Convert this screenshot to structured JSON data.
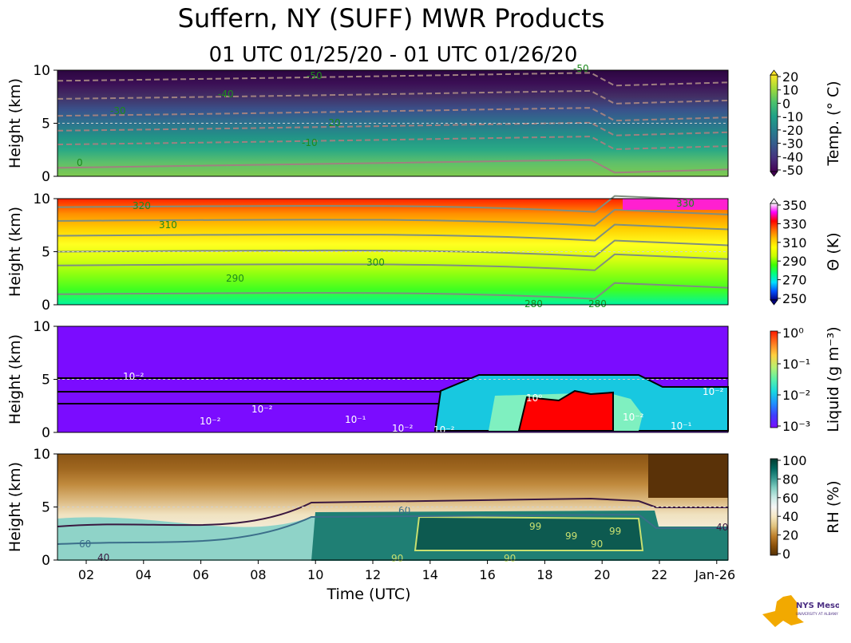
{
  "title": "Suffern, NY (SUFF) MWR Products",
  "subtitle": "01 UTC 01/25/20 - 01 UTC 01/26/20",
  "logo": {
    "text": "NYS Mesonet",
    "subtext": "UNIVERSITY AT ALBANY"
  },
  "chart_data": [
    {
      "type": "heatmap",
      "name": "temperature",
      "ylabel": "Height (km)",
      "ylim": [
        0,
        10
      ],
      "yticks": [
        "0",
        "5",
        "10"
      ],
      "colorbar_label": "Temp. (° C)",
      "colorbar_ticks": [
        "20",
        "10",
        "0",
        "-10",
        "-20",
        "-30",
        "-40",
        "-50"
      ],
      "colorscale": [
        "#440154",
        "#46327e",
        "#365c8d",
        "#277f8e",
        "#1fa187",
        "#4ac16d",
        "#a0da39",
        "#fde725"
      ],
      "contour_labels": [
        "-50",
        "-50",
        "-40",
        "-30",
        "-20",
        "-10",
        "0"
      ],
      "x_ticks_shown": false
    },
    {
      "type": "heatmap",
      "name": "potential-temperature",
      "ylabel": "Height (km)",
      "ylim": [
        0,
        10
      ],
      "yticks": [
        "0",
        "5",
        "10"
      ],
      "colorbar_label": "Θ (K)",
      "colorbar_ticks": [
        "350",
        "330",
        "310",
        "290",
        "270",
        "250"
      ],
      "colorscale": [
        "#000080",
        "#0050ff",
        "#00e0ff",
        "#00ff7f",
        "#40ff00",
        "#c8ff00",
        "#ffff00",
        "#ffc000",
        "#ff6a00",
        "#ff0000",
        "#ff00ff",
        "#ffffff"
      ],
      "contour_labels": [
        "320",
        "310",
        "300",
        "290",
        "280",
        "280",
        "330"
      ],
      "x_ticks_shown": false
    },
    {
      "type": "heatmap",
      "name": "liquid",
      "ylabel": "Height (km)",
      "ylim": [
        0,
        10
      ],
      "yticks": [
        "0",
        "5",
        "10"
      ],
      "colorbar_label": "Liquid (g m⁻³)",
      "colorbar_ticks": [
        "10⁰",
        "10⁻¹",
        "10⁻²",
        "10⁻³"
      ],
      "colorscale": [
        "#7b0cff",
        "#3f3cff",
        "#1e90ff",
        "#18d8e0",
        "#5af0a8",
        "#b8f070",
        "#ffd040",
        "#ff7820",
        "#ff1a00"
      ],
      "contour_labels": [
        "10⁻²",
        "10⁻²",
        "10⁻²",
        "10⁻²",
        "10⁻¹",
        "10⁻²",
        "10⁰",
        "10⁻²",
        "10⁻¹",
        "10⁻²"
      ],
      "x_ticks_shown": false
    },
    {
      "type": "heatmap",
      "name": "relative-humidity",
      "ylabel": "Height (km)",
      "xlabel": "Time (UTC)",
      "ylim": [
        0,
        10
      ],
      "yticks": [
        "0",
        "5",
        "10"
      ],
      "xticks": [
        "02",
        "04",
        "06",
        "08",
        "10",
        "12",
        "14",
        "16",
        "18",
        "20",
        "22",
        "Jan-26"
      ],
      "colorbar_label": "RH (%)",
      "colorbar_ticks": [
        "100",
        "80",
        "60",
        "40",
        "20",
        "0"
      ],
      "colorscale": [
        "#543005",
        "#8c510a",
        "#bf812d",
        "#dfc27d",
        "#f6e8c3",
        "#f5f5f5",
        "#c7eae5",
        "#80cdc1",
        "#35978f",
        "#01665e",
        "#003c30"
      ],
      "contour_labels": [
        "60",
        "60",
        "90",
        "99",
        "99",
        "99",
        "90",
        "90",
        "40",
        "40"
      ],
      "x_ticks_shown": true
    }
  ]
}
